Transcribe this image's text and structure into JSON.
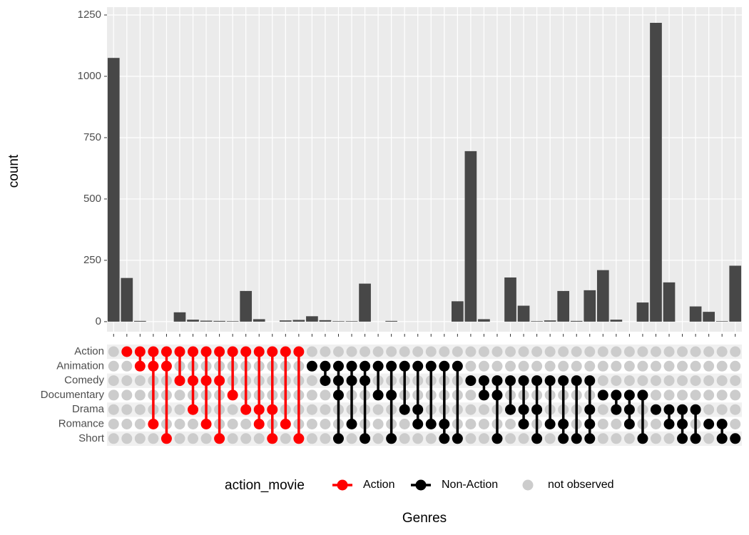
{
  "chart_data": {
    "type": "upset",
    "y_label": "count",
    "x_label": "Genres",
    "sets": [
      "Action",
      "Animation",
      "Comedy",
      "Documentary",
      "Drama",
      "Romance",
      "Short"
    ],
    "intersections": [
      [],
      [
        "Action"
      ],
      [
        "Action",
        "Animation"
      ],
      [
        "Action",
        "Animation",
        "Romance"
      ],
      [
        "Action",
        "Animation",
        "Short"
      ],
      [
        "Action",
        "Comedy"
      ],
      [
        "Action",
        "Comedy",
        "Drama"
      ],
      [
        "Action",
        "Comedy",
        "Romance"
      ],
      [
        "Action",
        "Comedy",
        "Short"
      ],
      [
        "Action",
        "Documentary"
      ],
      [
        "Action",
        "Drama"
      ],
      [
        "Action",
        "Drama",
        "Romance"
      ],
      [
        "Action",
        "Drama",
        "Short"
      ],
      [
        "Action",
        "Romance"
      ],
      [
        "Action",
        "Short"
      ],
      [
        "Animation"
      ],
      [
        "Animation",
        "Comedy"
      ],
      [
        "Animation",
        "Comedy",
        "Documentary",
        "Short"
      ],
      [
        "Animation",
        "Comedy",
        "Romance"
      ],
      [
        "Animation",
        "Comedy",
        "Short"
      ],
      [
        "Animation",
        "Documentary"
      ],
      [
        "Animation",
        "Documentary",
        "Short"
      ],
      [
        "Animation",
        "Drama"
      ],
      [
        "Animation",
        "Drama",
        "Romance"
      ],
      [
        "Animation",
        "Romance"
      ],
      [
        "Animation",
        "Romance",
        "Short"
      ],
      [
        "Animation",
        "Short"
      ],
      [
        "Comedy"
      ],
      [
        "Comedy",
        "Documentary"
      ],
      [
        "Comedy",
        "Documentary",
        "Short"
      ],
      [
        "Comedy",
        "Drama"
      ],
      [
        "Comedy",
        "Drama",
        "Romance"
      ],
      [
        "Comedy",
        "Drama",
        "Short"
      ],
      [
        "Comedy",
        "Romance"
      ],
      [
        "Comedy",
        "Romance",
        "Short"
      ],
      [
        "Comedy",
        "Short"
      ],
      [
        "Comedy",
        "Drama",
        "Romance",
        "Short"
      ],
      [
        "Documentary"
      ],
      [
        "Documentary",
        "Drama"
      ],
      [
        "Documentary",
        "Drama",
        "Romance"
      ],
      [
        "Documentary",
        "Short"
      ],
      [
        "Drama"
      ],
      [
        "Drama",
        "Romance"
      ],
      [
        "Drama",
        "Romance",
        "Short"
      ],
      [
        "Drama",
        "Short"
      ],
      [
        "Romance"
      ],
      [
        "Romance",
        "Short"
      ],
      [
        "Short"
      ]
    ],
    "values": [
      1075,
      178,
      3,
      0,
      0,
      38,
      8,
      4,
      3,
      2,
      125,
      10,
      0,
      5,
      7,
      22,
      6,
      2,
      2,
      155,
      0,
      3,
      0,
      0,
      0,
      0,
      83,
      695,
      10,
      0,
      180,
      65,
      2,
      5,
      125,
      3,
      128,
      210,
      8,
      0,
      78,
      1218,
      160,
      0,
      62,
      40,
      2,
      228
    ],
    "bar_color": "#474747",
    "ylim": [
      -41,
      1282
    ],
    "yticks": [
      0,
      250,
      500,
      750,
      1000,
      1250
    ],
    "grid": true,
    "legend_title": "action_movie",
    "legend_position": "bottom",
    "series": [
      {
        "name": "Action",
        "color": "#ff0000"
      },
      {
        "name": "Non-Action",
        "color": "#000000"
      },
      {
        "name": "not observed",
        "color": "#cccccc"
      }
    ]
  }
}
